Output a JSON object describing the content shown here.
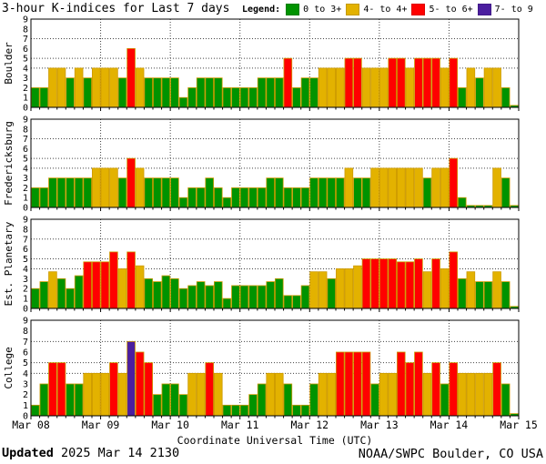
{
  "title": "3-hour K-indices for Last 7 days",
  "legend": {
    "label": "Legend:",
    "bands": [
      {
        "label": "0 to 3+",
        "color": "#009300"
      },
      {
        "label": "4- to 4+",
        "color": "#e3b200"
      },
      {
        "label": "5- to 6+",
        "color": "#ff0000"
      },
      {
        "label": "7- to 9",
        "color": "#4b1e9f"
      }
    ]
  },
  "footer": {
    "updated_label": "Updated",
    "updated_value": "2025 Mar 14 2130",
    "credit": "NOAA/SWPC Boulder, CO USA"
  },
  "chart_data": {
    "type": "bar",
    "title": "3-hour K-indices for Last 7 days",
    "xlabel": "Coordinate Universal Time (UTC)",
    "x_tick_labels": [
      "Mar 08",
      "Mar 09",
      "Mar 10",
      "Mar 11",
      "Mar 12",
      "Mar 13",
      "Mar 14",
      "Mar 15"
    ],
    "ylim": [
      0,
      9
    ],
    "y_ticks": [
      0,
      1,
      2,
      3,
      4,
      5,
      6,
      7,
      8,
      9
    ],
    "dotted_gridlines_at_y": [
      4,
      5,
      7
    ],
    "bar_hours": 3,
    "bars_per_day": 8,
    "bar_outline_color": "#cc9900",
    "color_thresholds": [
      {
        "max": 3.5,
        "color": "#009300"
      },
      {
        "max": 4.5,
        "color": "#e3b200"
      },
      {
        "max": 6.5,
        "color": "#ff0000"
      },
      {
        "max": 9.0,
        "color": "#4b1e9f"
      }
    ],
    "series": [
      {
        "name": "Boulder",
        "values": [
          2,
          2,
          4,
          4,
          3,
          4,
          3,
          4,
          4,
          4,
          3,
          6,
          4,
          3,
          3,
          3,
          3,
          1,
          2,
          3,
          3,
          3,
          2,
          2,
          2,
          2,
          3,
          3,
          3,
          5,
          2,
          3,
          3,
          4,
          4,
          4,
          5,
          5,
          4,
          4,
          4,
          5,
          5,
          4,
          5,
          5,
          5,
          4,
          5,
          2,
          4,
          3,
          4,
          4,
          2,
          0.2
        ]
      },
      {
        "name": "Fredericksburg",
        "values": [
          2,
          2,
          3,
          3,
          3,
          3,
          3,
          4,
          4,
          4,
          3,
          5,
          4,
          3,
          3,
          3,
          3,
          1,
          2,
          2,
          3,
          2,
          1,
          2,
          2,
          2,
          2,
          3,
          3,
          2,
          2,
          2,
          3,
          3,
          3,
          3,
          4,
          3,
          3,
          4,
          4,
          4,
          4,
          4,
          4,
          3,
          4,
          4,
          5,
          1,
          0.2,
          0.2,
          0.2,
          4,
          3,
          0.2
        ]
      },
      {
        "name": "Est. Planetary",
        "values": [
          2,
          2.7,
          3.7,
          3,
          2,
          3.3,
          4.7,
          4.7,
          4.7,
          5.7,
          4,
          5.7,
          4.3,
          3,
          2.7,
          3.3,
          3,
          2,
          2.3,
          2.7,
          2.3,
          2.7,
          1,
          2.3,
          2.3,
          2.3,
          2.3,
          2.7,
          3,
          1.3,
          1.3,
          2.3,
          3.7,
          3.7,
          3,
          4,
          4,
          4.3,
          5,
          5,
          5,
          5,
          4.7,
          4.7,
          5,
          3.7,
          5,
          4,
          5.7,
          3,
          3.7,
          2.7,
          2.7,
          3.7,
          2.7,
          0.2
        ]
      },
      {
        "name": "College",
        "values": [
          1,
          3,
          5,
          5,
          3,
          3,
          4,
          4,
          4,
          5,
          4,
          7,
          6,
          5,
          2,
          3,
          3,
          2,
          4,
          4,
          5,
          4,
          1,
          1,
          1,
          2,
          3,
          4,
          4,
          3,
          1,
          1,
          3,
          4,
          4,
          6,
          6,
          6,
          6,
          3,
          4,
          4,
          6,
          5,
          6,
          4,
          5,
          3,
          5,
          4,
          4,
          4,
          4,
          5,
          3,
          0.2
        ]
      }
    ]
  }
}
